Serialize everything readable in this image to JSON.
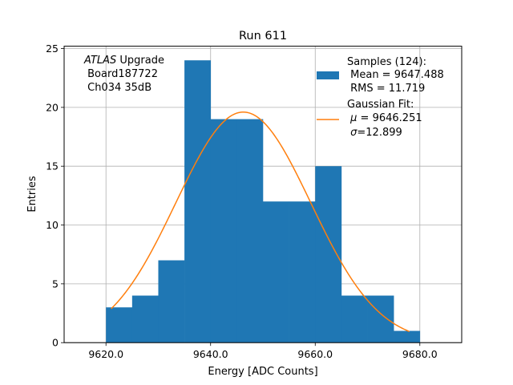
{
  "chart_data": {
    "type": "bar",
    "title": "Run 611",
    "xlabel": "Energy [ADC Counts]",
    "ylabel": "Entries",
    "xlim": [
      9612,
      9688
    ],
    "ylim": [
      0,
      25.2
    ],
    "xticks": [
      9620,
      9640,
      9660,
      9680
    ],
    "xtick_labels": [
      "9620.0",
      "9640.0",
      "9660.0",
      "9680.0"
    ],
    "yticks": [
      0,
      5,
      10,
      15,
      20,
      25
    ],
    "ytick_labels": [
      "0",
      "5",
      "10",
      "15",
      "20",
      "25"
    ],
    "grid": true,
    "histogram": {
      "bin_edges": [
        9620,
        9625,
        9630,
        9635,
        9640,
        9645,
        9650,
        9655,
        9660,
        9665,
        9670,
        9675,
        9680
      ],
      "counts": [
        3,
        4,
        7,
        24,
        19,
        19,
        12,
        12,
        15,
        4,
        4,
        1
      ],
      "color": "#1f77b4"
    },
    "fit": {
      "mu": 9646.251,
      "sigma": 12.899,
      "amplitude": 19.6,
      "x_range": [
        9621,
        9678
      ],
      "color": "#ff7f0e"
    },
    "annotation": {
      "line1_italic": "ATLAS",
      "line1_rest": " Upgrade",
      "line2": " Board187722",
      "line3": " Ch034 35dB"
    },
    "legend": {
      "placement": "top-right",
      "samples": {
        "line1": "Samples (124):",
        "line2": " Mean = 9647.488",
        "line3": " RMS = 11.719"
      },
      "fit": {
        "line1": "Gaussian Fit:",
        "line2_sym": "μ",
        "line2_rest": " = 9646.251",
        "line3_sym": "σ",
        "line3_rest": "=12.899"
      }
    }
  }
}
